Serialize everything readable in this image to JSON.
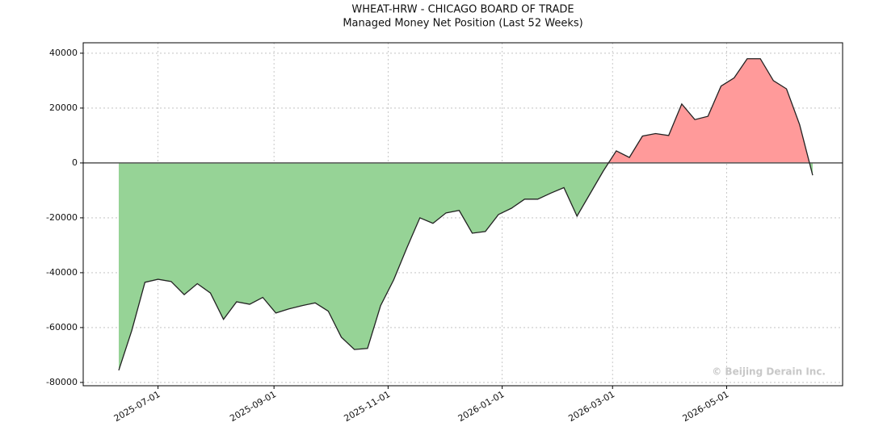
{
  "chart_data": {
    "type": "area",
    "title": "WHEAT-HRW - CHICAGO BOARD OF TRADE",
    "subtitle": "Managed Money Net Position (Last 52 Weeks)",
    "watermark": "© Beijing Derain Inc.",
    "x": [
      "2025-06-10",
      "2025-06-17",
      "2025-06-24",
      "2025-07-01",
      "2025-07-08",
      "2025-07-15",
      "2025-07-22",
      "2025-07-29",
      "2025-08-05",
      "2025-08-12",
      "2025-08-19",
      "2025-08-26",
      "2025-09-02",
      "2025-09-09",
      "2025-09-16",
      "2025-09-23",
      "2025-09-30",
      "2025-10-07",
      "2025-10-14",
      "2025-10-21",
      "2025-10-28",
      "2025-11-04",
      "2025-11-11",
      "2025-11-18",
      "2025-11-25",
      "2025-12-02",
      "2025-12-09",
      "2025-12-16",
      "2025-12-23",
      "2025-12-30",
      "2026-01-06",
      "2026-01-13",
      "2026-01-20",
      "2026-01-27",
      "2026-02-03",
      "2026-02-10",
      "2026-02-17",
      "2026-02-24",
      "2026-03-03",
      "2026-03-10",
      "2026-03-17",
      "2026-03-24",
      "2026-03-31",
      "2026-04-07",
      "2026-04-14",
      "2026-04-21",
      "2026-04-28",
      "2026-05-05",
      "2026-05-12",
      "2026-05-19",
      "2026-05-26",
      "2026-06-02",
      "2026-06-09",
      "2026-06-16"
    ],
    "series": [
      {
        "name": "Managed Money Net Position",
        "line_color": "#222222",
        "positive_color": "#ff9a9a",
        "negative_color": "#96d396",
        "values": [
          -75600,
          -61000,
          -43500,
          -42400,
          -43200,
          -48000,
          -44000,
          -47400,
          -57000,
          -50600,
          -51500,
          -49000,
          -54700,
          -53200,
          -52000,
          -51000,
          -54000,
          -63500,
          -68000,
          -67600,
          -52000,
          -42600,
          -31000,
          -20000,
          -22000,
          -18200,
          -17300,
          -25600,
          -25000,
          -18800,
          -16500,
          -13200,
          -13200,
          -11000,
          -9000,
          -19400,
          -11200,
          -3000,
          4400,
          2000,
          9800,
          10700,
          10000,
          21500,
          15800,
          17000,
          28000,
          31000,
          38000,
          38000,
          30000,
          27000,
          14000,
          -4500
        ]
      }
    ],
    "xlim": [
      "2025-05-22",
      "2026-07-02"
    ],
    "xticks": [
      "2025-07-01",
      "2025-09-01",
      "2025-11-01",
      "2026-01-01",
      "2026-03-01",
      "2026-05-01"
    ],
    "ylim": [
      -81200,
      43800
    ],
    "yticks": [
      -80000,
      -60000,
      -40000,
      -20000,
      0,
      20000,
      40000
    ],
    "grid": true
  }
}
